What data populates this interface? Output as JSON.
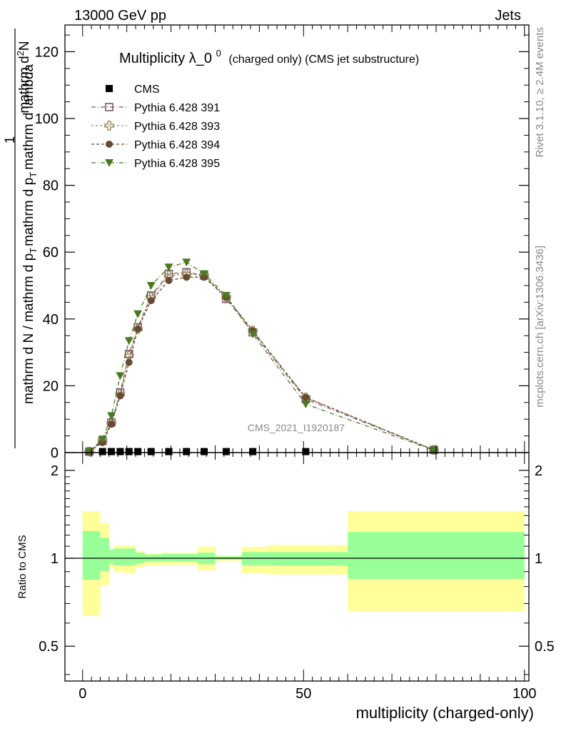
{
  "header": {
    "left": "13000 GeV pp",
    "right": "Jets"
  },
  "side_labels": {
    "rivet": "Rivet 3.1.10, ≥ 2.4M events",
    "mcplots": "mcplots.cern.ch [arXiv:1306.3436]"
  },
  "watermark": "CMS_2021_I1920187",
  "chart_data": [
    {
      "type": "line",
      "title_main": "Multiplicity λ_0",
      "title_sup": "0",
      "title_sub": "(charged only) (CMS jet substructure)",
      "ylabel_parts": [
        "1",
        "mathrm d N / mathrm d p",
        "T",
        "mathrm d p",
        "T",
        "mathrm d lambda",
        "mathrm d",
        "2",
        "N"
      ],
      "xlim": [
        -4,
        101
      ],
      "ylim": [
        0,
        128
      ],
      "yticks": [
        0,
        20,
        40,
        60,
        80,
        100,
        120
      ],
      "ytick_labels": [
        "0",
        "20",
        "40",
        "60",
        "80",
        "100",
        "120"
      ],
      "legend_position": "top-left",
      "series": [
        {
          "name": "CMS",
          "color": "#000000",
          "marker": "square",
          "x": [
            1.5,
            4.5,
            6.5,
            8.5,
            10.5,
            12.5,
            15.5,
            19.5,
            23.5,
            27.5,
            32.5,
            38.5,
            50.5
          ],
          "y": [
            0.3,
            0.3,
            0.3,
            0.3,
            0.3,
            0.3,
            0.3,
            0.3,
            0.3,
            0.3,
            0.3,
            0.3,
            0.3
          ]
        },
        {
          "name": "Pythia 6.428 391",
          "color": "#7b5a6a",
          "marker": "open-square",
          "dash": "6,3,1,3",
          "x": [
            1.5,
            4.5,
            6.5,
            8.5,
            10.5,
            12.5,
            15.5,
            19.5,
            23.5,
            27.5,
            32.5,
            38.5,
            50.5,
            79.5
          ],
          "y": [
            0.3,
            3.5,
            9.0,
            18.0,
            29.5,
            37.5,
            47.0,
            53.5,
            54.0,
            53.0,
            46.0,
            36.0,
            16.0,
            0.8
          ]
        },
        {
          "name": "Pythia 6.428 393",
          "color": "#9c8a5a",
          "marker": "open-cross",
          "dash": "3,3",
          "x": [
            1.5,
            4.5,
            6.5,
            8.5,
            10.5,
            12.5,
            15.5,
            19.5,
            23.5,
            27.5,
            32.5,
            38.5,
            50.5,
            79.5
          ],
          "y": [
            0.3,
            3.5,
            9.0,
            17.5,
            29.0,
            37.0,
            46.5,
            53.0,
            53.5,
            53.0,
            46.5,
            36.5,
            16.5,
            0.8
          ]
        },
        {
          "name": "Pythia 6.428 394",
          "color": "#6b4a32",
          "marker": "circle",
          "dash": "4,3",
          "x": [
            1.5,
            4.5,
            6.5,
            8.5,
            10.5,
            12.5,
            15.5,
            19.5,
            23.5,
            27.5,
            32.5,
            38.5,
            50.5,
            79.5
          ],
          "y": [
            0.3,
            3.0,
            8.5,
            17.0,
            27.0,
            37.0,
            45.5,
            51.5,
            52.5,
            52.5,
            46.5,
            36.5,
            16.5,
            0.8
          ]
        },
        {
          "name": "Pythia 6.428 395",
          "color": "#4a7a20",
          "marker": "triangle-down",
          "dash": "6,3,1,3",
          "x": [
            1.5,
            4.5,
            6.5,
            8.5,
            10.5,
            12.5,
            15.5,
            19.5,
            23.5,
            27.5,
            32.5,
            38.5,
            50.5,
            79.5
          ],
          "y": [
            0.3,
            4.0,
            11.0,
            23.0,
            33.5,
            41.5,
            50.0,
            55.5,
            57.0,
            53.5,
            47.0,
            35.5,
            14.5,
            0.7
          ]
        }
      ]
    },
    {
      "type": "area",
      "ylabel": "Ratio to CMS",
      "xlabel": "multiplicity (charged-only)",
      "xlim": [
        -4,
        101
      ],
      "ylim": [
        0.38,
        2.3
      ],
      "log_y": true,
      "xticks": [
        0,
        50,
        100
      ],
      "xtick_labels": [
        "0",
        "50",
        "100"
      ],
      "yticks": [
        0.5,
        1,
        2
      ],
      "ytick_labels": [
        "0.5",
        "1",
        "2"
      ],
      "reference_line": 1,
      "colors": {
        "outer_band": "#ffff99",
        "inner_band": "#99ff99"
      },
      "bins": [
        {
          "x0": 0,
          "x1": 4,
          "outer": [
            0.635,
            1.45
          ],
          "inner": [
            0.845,
            1.24
          ]
        },
        {
          "x0": 4,
          "x1": 6,
          "outer": [
            0.81,
            1.32
          ],
          "inner": [
            0.905,
            1.175
          ]
        },
        {
          "x0": 6,
          "x1": 7,
          "outer": [
            0.93,
            1.07
          ],
          "inner": [
            0.96,
            1.07
          ]
        },
        {
          "x0": 7,
          "x1": 9,
          "outer": [
            0.9,
            1.105
          ],
          "inner": [
            0.945,
            1.08
          ]
        },
        {
          "x0": 9,
          "x1": 12,
          "outer": [
            0.89,
            1.105
          ],
          "inner": [
            0.945,
            1.08
          ]
        },
        {
          "x0": 12,
          "x1": 14,
          "outer": [
            0.93,
            1.06
          ],
          "inner": [
            0.96,
            1.045
          ]
        },
        {
          "x0": 14,
          "x1": 18,
          "outer": [
            0.945,
            1.04
          ],
          "inner": [
            0.975,
            1.03
          ]
        },
        {
          "x0": 18,
          "x1": 26,
          "outer": [
            0.95,
            1.045
          ],
          "inner": [
            0.975,
            1.035
          ]
        },
        {
          "x0": 26,
          "x1": 30,
          "outer": [
            0.91,
            1.095
          ],
          "inner": [
            0.955,
            1.045
          ]
        },
        {
          "x0": 30,
          "x1": 36,
          "outer": [
            0.98,
            1.02
          ],
          "inner": [
            0.99,
            1.015
          ]
        },
        {
          "x0": 36,
          "x1": 42,
          "outer": [
            0.89,
            1.095
          ],
          "inner": [
            0.945,
            1.05
          ]
        },
        {
          "x0": 42,
          "x1": 60,
          "outer": [
            0.88,
            1.11
          ],
          "inner": [
            0.945,
            1.05
          ]
        },
        {
          "x0": 60,
          "x1": 100,
          "outer": [
            0.66,
            1.45
          ],
          "inner": [
            0.85,
            1.23
          ]
        }
      ]
    }
  ]
}
